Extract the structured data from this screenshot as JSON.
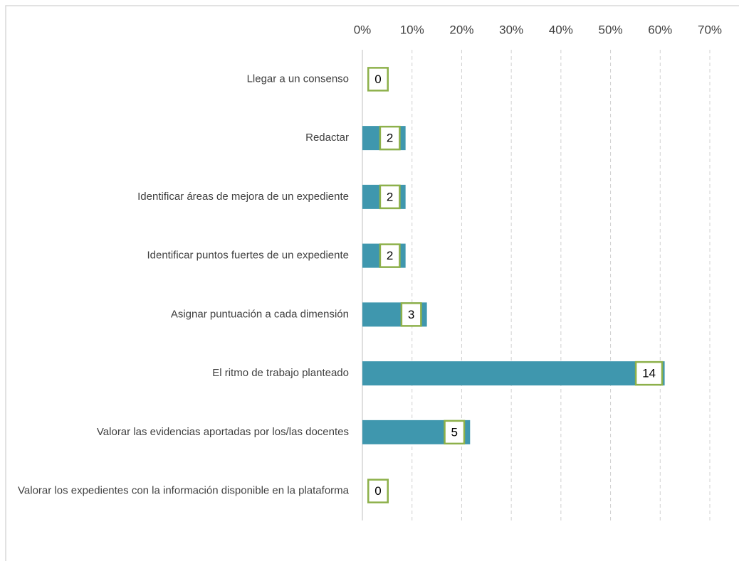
{
  "chart_data": {
    "type": "bar",
    "orientation": "horizontal",
    "categories": [
      "Llegar a un consenso",
      "Redactar",
      "Identificar áreas de mejora de un expediente",
      "Identificar puntos fuertes de un expediente",
      "Asignar puntuación a cada dimensión",
      "El ritmo de trabajo planteado",
      "Valorar las evidencias aportadas por los/las docentes",
      "Valorar los expedientes con la información disponible en la plataforma"
    ],
    "values": [
      0,
      8.7,
      8.7,
      8.7,
      13.0,
      60.9,
      21.7,
      0
    ],
    "counts": [
      0,
      2,
      2,
      2,
      3,
      14,
      5,
      0
    ],
    "color": "#3f97ae",
    "label_border": "#8db04a",
    "xlim": [
      0,
      70
    ],
    "xticks": [
      {
        "value": 0,
        "label": "0%"
      },
      {
        "value": 10,
        "label": "10%"
      },
      {
        "value": 20,
        "label": "20%"
      },
      {
        "value": 30,
        "label": "30%"
      },
      {
        "value": 40,
        "label": "40%"
      },
      {
        "value": 50,
        "label": "50%"
      },
      {
        "value": 60,
        "label": "60%"
      },
      {
        "value": 70,
        "label": "70%"
      }
    ],
    "grid": true
  }
}
